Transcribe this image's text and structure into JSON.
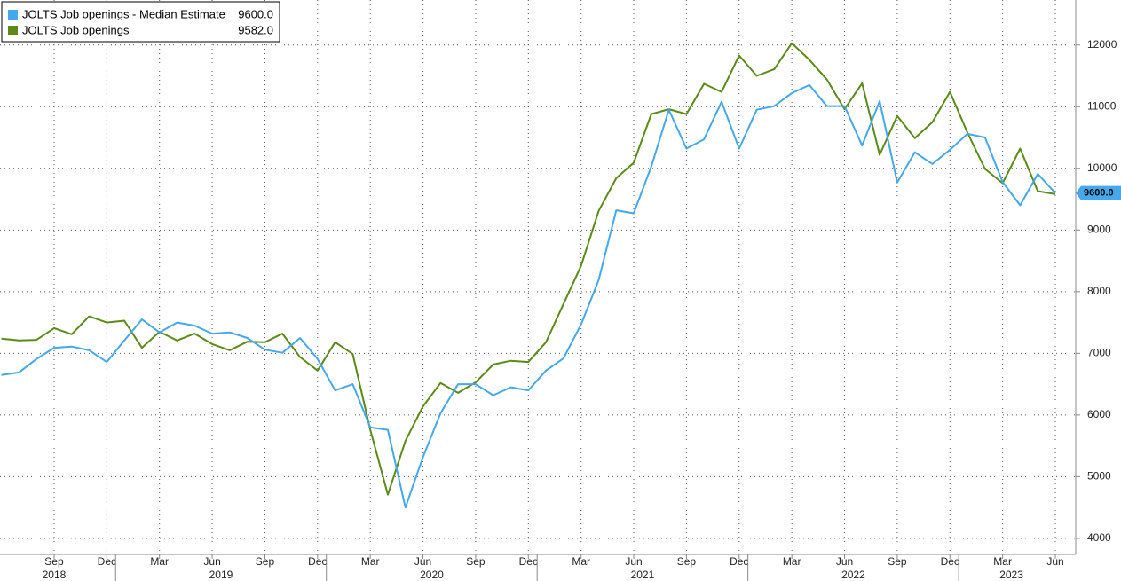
{
  "chart_data": {
    "type": "line",
    "x": [
      "2018-06",
      "2018-07",
      "2018-08",
      "2018-09",
      "2018-10",
      "2018-11",
      "2018-12",
      "2019-01",
      "2019-02",
      "2019-03",
      "2019-04",
      "2019-05",
      "2019-06",
      "2019-07",
      "2019-08",
      "2019-09",
      "2019-10",
      "2019-11",
      "2019-12",
      "2020-01",
      "2020-02",
      "2020-03",
      "2020-04",
      "2020-05",
      "2020-06",
      "2020-07",
      "2020-08",
      "2020-09",
      "2020-10",
      "2020-11",
      "2020-12",
      "2021-01",
      "2021-02",
      "2021-03",
      "2021-04",
      "2021-05",
      "2021-06",
      "2021-07",
      "2021-08",
      "2021-09",
      "2021-10",
      "2021-11",
      "2021-12",
      "2022-01",
      "2022-02",
      "2022-03",
      "2022-04",
      "2022-05",
      "2022-06",
      "2022-07",
      "2022-08",
      "2022-09",
      "2022-10",
      "2022-11",
      "2022-12",
      "2023-01",
      "2023-02",
      "2023-03",
      "2023-04",
      "2023-05",
      "2023-06"
    ],
    "series": [
      {
        "name": "JOLTS Job openings - Median Estimate",
        "legend_value": "9600.0",
        "color": "#45a7ec",
        "values": [
          6650,
          6690,
          6910,
          7090,
          7110,
          7050,
          6860,
          7210,
          7550,
          7340,
          7500,
          7450,
          7320,
          7340,
          7250,
          7060,
          7010,
          7250,
          6910,
          6400,
          6500,
          5800,
          5760,
          4500,
          5320,
          6030,
          6500,
          6500,
          6320,
          6450,
          6400,
          6720,
          6920,
          7470,
          8190,
          9320,
          9270,
          10030,
          10950,
          10320,
          10470,
          11080,
          10320,
          10950,
          11010,
          11220,
          11350,
          11010,
          11010,
          10370,
          11090,
          9770,
          10260,
          10070,
          10300,
          10560,
          10500,
          9780,
          9400,
          9910,
          9600
        ]
      },
      {
        "name": "JOLTS Job openings",
        "legend_value": "9582.0",
        "color": "#5b8a16",
        "values": [
          7240,
          7210,
          7220,
          7410,
          7310,
          7600,
          7500,
          7530,
          7090,
          7350,
          7210,
          7320,
          7150,
          7050,
          7190,
          7180,
          7320,
          6940,
          6720,
          7180,
          6990,
          5760,
          4710,
          5580,
          6140,
          6520,
          6360,
          6530,
          6820,
          6880,
          6860,
          7180,
          7800,
          8420,
          9310,
          9840,
          10090,
          10880,
          10960,
          10880,
          11370,
          11240,
          11830,
          11500,
          11610,
          12030,
          11760,
          11440,
          10960,
          11380,
          10220,
          10850,
          10490,
          10750,
          11240,
          10580,
          9990,
          9760,
          10320,
          9630,
          9582
        ]
      }
    ],
    "xticks": [
      {
        "value": "2018-09",
        "label": "Sep"
      },
      {
        "value": "2018-12",
        "label": "Dec"
      },
      {
        "value": "2019-03",
        "label": "Mar"
      },
      {
        "value": "2019-06",
        "label": "Jun"
      },
      {
        "value": "2019-09",
        "label": "Sep"
      },
      {
        "value": "2019-12",
        "label": "Dec"
      },
      {
        "value": "2020-03",
        "label": "Mar"
      },
      {
        "value": "2020-06",
        "label": "Jun"
      },
      {
        "value": "2020-09",
        "label": "Sep"
      },
      {
        "value": "2020-12",
        "label": "Dec"
      },
      {
        "value": "2021-03",
        "label": "Mar"
      },
      {
        "value": "2021-06",
        "label": "Jun"
      },
      {
        "value": "2021-09",
        "label": "Sep"
      },
      {
        "value": "2021-12",
        "label": "Dec"
      },
      {
        "value": "2022-03",
        "label": "Mar"
      },
      {
        "value": "2022-06",
        "label": "Jun"
      },
      {
        "value": "2022-09",
        "label": "Sep"
      },
      {
        "value": "2022-12",
        "label": "Dec"
      },
      {
        "value": "2023-03",
        "label": "Mar"
      },
      {
        "value": "2023-06",
        "label": "Jun"
      }
    ],
    "years": [
      "2018",
      "2019",
      "2020",
      "2021",
      "2022",
      "2023"
    ],
    "ylim": [
      3740,
      12730
    ],
    "yticks": [
      4000,
      5000,
      6000,
      7000,
      8000,
      9000,
      10000,
      11000,
      12000
    ],
    "grid": true
  }
}
